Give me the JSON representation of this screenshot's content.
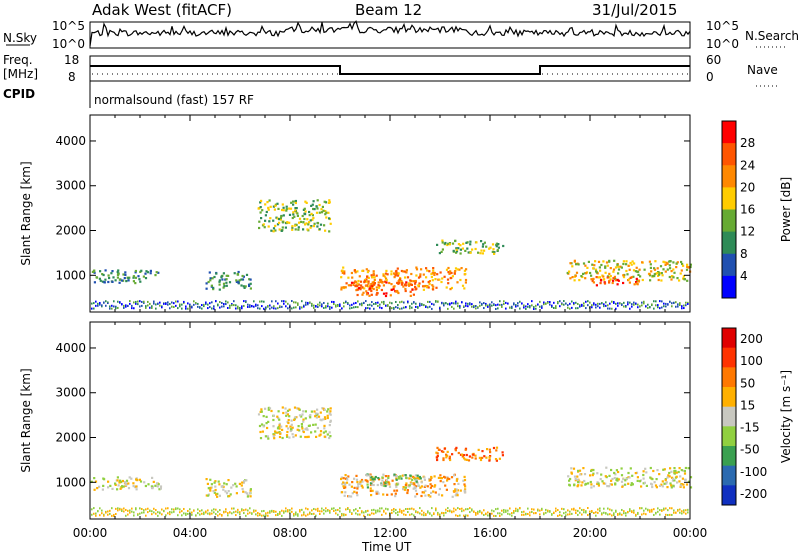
{
  "header": {
    "radar": "Adak West (fitACF)",
    "beam": "Beam 12",
    "date": "31/Jul/2015"
  },
  "top_panels": {
    "nsky_label": "N.Sky",
    "nsky_ticks": [
      "10^5",
      "10^0"
    ],
    "nsearch_label": "N.Search",
    "nsearch_ticks": [
      "10^5",
      "10^0"
    ],
    "freq_label": "Freq.",
    "freq_unit": "[MHz]",
    "freq_ticks": [
      "18",
      "8"
    ],
    "nave_label": "Nave",
    "nave_ticks": [
      "60",
      "0"
    ],
    "cpid_label": "CPID",
    "cpid_value": "normalsound (fast) 157 RF"
  },
  "chart_data": [
    {
      "type": "heatmap",
      "panel": "power",
      "ylabel": "Slant Range [km]",
      "yticks": [
        "1000",
        "2000",
        "3000",
        "4000"
      ],
      "ylim": [
        180,
        4580
      ],
      "colorbar_label": "Power [dB]",
      "colorbar_ticks": [
        "4",
        "8",
        "12",
        "16",
        "20",
        "24",
        "28"
      ],
      "colors": [
        "#0000ff",
        "#2050b0",
        "#2e8b57",
        "#66aa33",
        "#ffcc00",
        "#ff8800",
        "#ff5500",
        "#ff0000"
      ],
      "regions": [
        {
          "t0": 0.0,
          "t1": 2.8,
          "r0": 850,
          "r1": 1150,
          "level": 2
        },
        {
          "t0": 4.6,
          "t1": 6.4,
          "r0": 700,
          "r1": 1100,
          "level": 2
        },
        {
          "t0": 6.7,
          "t1": 9.6,
          "r0": 2000,
          "r1": 2700,
          "level": 3
        },
        {
          "t0": 10.0,
          "t1": 15.0,
          "r0": 700,
          "r1": 1200,
          "level": 5
        },
        {
          "t0": 10.4,
          "t1": 13.0,
          "r0": 550,
          "r1": 900,
          "level": 6
        },
        {
          "t0": 13.8,
          "t1": 16.5,
          "r0": 1500,
          "r1": 1800,
          "level": 3
        },
        {
          "t0": 19.0,
          "t1": 24.0,
          "r0": 900,
          "r1": 1350,
          "level": 4
        },
        {
          "t0": 20.0,
          "t1": 22.0,
          "r0": 800,
          "r1": 1000,
          "level": 6
        }
      ]
    },
    {
      "type": "heatmap",
      "panel": "velocity",
      "ylabel": "Slant Range [km]",
      "yticks": [
        "1000",
        "2000",
        "3000",
        "4000"
      ],
      "ylim": [
        180,
        4580
      ],
      "colorbar_label": "Velocity [m s⁻¹]",
      "colorbar_ticks": [
        "200",
        "100",
        "50",
        "15",
        "-15",
        "-50",
        "-100",
        "-200"
      ],
      "colors": [
        "#1030c0",
        "#2b6ab0",
        "#3aa050",
        "#90d040",
        "#c8c8c0",
        "#ffb000",
        "#ff7800",
        "#ff3300",
        "#e00000"
      ],
      "regions": [
        {
          "t0": 0.0,
          "t1": 2.8,
          "r0": 850,
          "r1": 1150,
          "level": 4
        },
        {
          "t0": 4.6,
          "t1": 6.4,
          "r0": 700,
          "r1": 1100,
          "level": 4
        },
        {
          "t0": 6.7,
          "t1": 9.6,
          "r0": 2000,
          "r1": 2700,
          "level": 4
        },
        {
          "t0": 10.0,
          "t1": 15.0,
          "r0": 700,
          "r1": 1200,
          "level": 5
        },
        {
          "t0": 11.0,
          "t1": 13.5,
          "r0": 900,
          "r1": 1200,
          "level": 3
        },
        {
          "t0": 13.8,
          "t1": 16.5,
          "r0": 1500,
          "r1": 1800,
          "level": 6
        },
        {
          "t0": 19.0,
          "t1": 24.0,
          "r0": 900,
          "r1": 1350,
          "level": 4
        }
      ]
    }
  ],
  "x_axis": {
    "label": "Time UT",
    "ticks": [
      "00:00",
      "04:00",
      "08:00",
      "12:00",
      "16:00",
      "20:00",
      "00:00"
    ]
  }
}
